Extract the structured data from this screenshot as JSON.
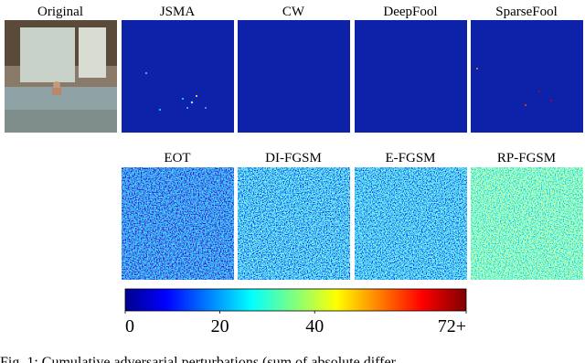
{
  "panels": [
    {
      "title": "Original"
    },
    {
      "title": "JSMA"
    },
    {
      "title": "CW"
    },
    {
      "title": "DeepFool"
    },
    {
      "title": "SparseFool"
    },
    {
      "title": "EOT"
    },
    {
      "title": "DI-FGSM"
    },
    {
      "title": "E-FGSM"
    },
    {
      "title": "RP-FGSM"
    }
  ],
  "colorbar": {
    "range": [
      0,
      72
    ],
    "ticks": [
      0,
      20,
      40,
      {
        "value": 72,
        "label": "72+"
      }
    ]
  },
  "caption": "Fig. 1:   Cumulative adversarial perturbations (sum of absolute differ"
}
